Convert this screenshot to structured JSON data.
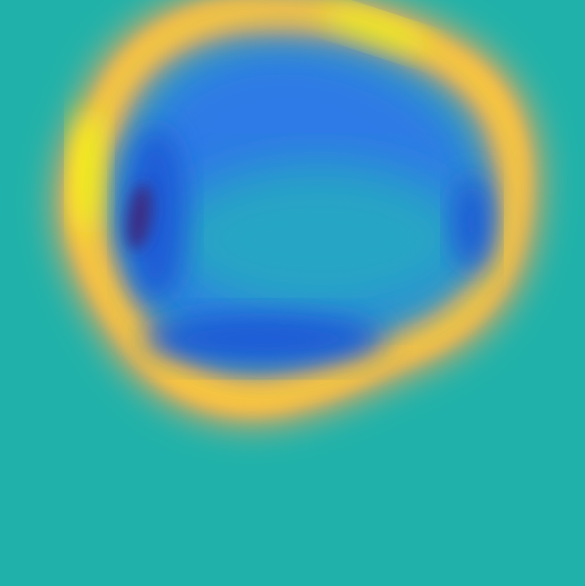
{
  "colors": {
    "background": "#20b2aa",
    "ring_warm": "#ffc83a",
    "ring_hot": "#f8f816",
    "ring_soft": "#f0a858",
    "inner_cool": "#2e7ae6",
    "inner_mid": "#27a6c4",
    "inner_deep": "#1f5cd6",
    "dark_spot": "#3b2e85"
  }
}
